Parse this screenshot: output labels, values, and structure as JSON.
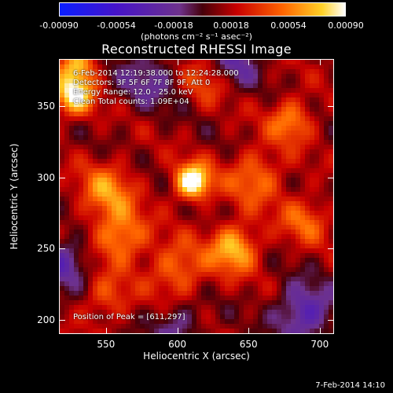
{
  "chart_data": {
    "type": "heatmap",
    "title": "Reconstructed RHESSI Image",
    "xlabel": "Heliocentric X (arcsec)",
    "ylabel": "Heliocentric Y (arcsec)",
    "xlim": [
      517,
      710
    ],
    "ylim": [
      190,
      383
    ],
    "xticks": [
      "550",
      "600",
      "650",
      "700"
    ],
    "yticks": [
      "200",
      "250",
      "300",
      "350"
    ],
    "colorbar": {
      "range": [
        -0.0009,
        0.0009
      ],
      "ticks": [
        "-0.00090",
        "-0.00054",
        "-0.00018",
        "0.00018",
        "0.00054",
        "0.00090"
      ],
      "units": "(photons cm⁻² s⁻¹ asec⁻²)"
    },
    "annotations": [
      "6-Feb-2014 12:19:38.000 to 12:24:28.000",
      "Detectors: 3F 5F 6F 7F 8F 9F, Att 0",
      "Energy Range: 12.0 - 25.0 keV",
      "Clean     Total counts: 1.09E+04"
    ],
    "peak": {
      "label": "Position of Peak = [611,297]",
      "x": 611,
      "y": 297
    },
    "sources": [
      {
        "x": 611,
        "y": 297,
        "value": 0.0009,
        "sigma": 9
      },
      {
        "x": 527,
        "y": 358,
        "value": 0.00075,
        "sigma": 10
      },
      {
        "x": 530,
        "y": 380,
        "value": 0.00055,
        "sigma": 9
      },
      {
        "x": 640,
        "y": 250,
        "value": 0.0006,
        "sigma": 12
      },
      {
        "x": 560,
        "y": 258,
        "value": 0.0005,
        "sigma": 13
      },
      {
        "x": 550,
        "y": 290,
        "value": 0.00045,
        "sigma": 14
      },
      {
        "x": 680,
        "y": 340,
        "value": 0.00045,
        "sigma": 11
      },
      {
        "x": 655,
        "y": 300,
        "value": 0.0004,
        "sigma": 14
      },
      {
        "x": 600,
        "y": 235,
        "value": 0.0004,
        "sigma": 14
      },
      {
        "x": 690,
        "y": 270,
        "value": 0.00035,
        "sigma": 12
      },
      {
        "x": 620,
        "y": 370,
        "value": 0.0003,
        "sigma": 12
      },
      {
        "x": 550,
        "y": 215,
        "value": 0.0003,
        "sigma": 12
      },
      {
        "x": 580,
        "y": 370,
        "value": -0.0003,
        "sigma": 15
      },
      {
        "x": 520,
        "y": 240,
        "value": -0.0004,
        "sigma": 13
      },
      {
        "x": 690,
        "y": 205,
        "value": -0.0005,
        "sigma": 14
      },
      {
        "x": 640,
        "y": 380,
        "value": -0.00035,
        "sigma": 12
      },
      {
        "x": 600,
        "y": 195,
        "value": -0.0003,
        "sigma": 12
      }
    ]
  },
  "footer": "7-Feb-2014 14:10"
}
